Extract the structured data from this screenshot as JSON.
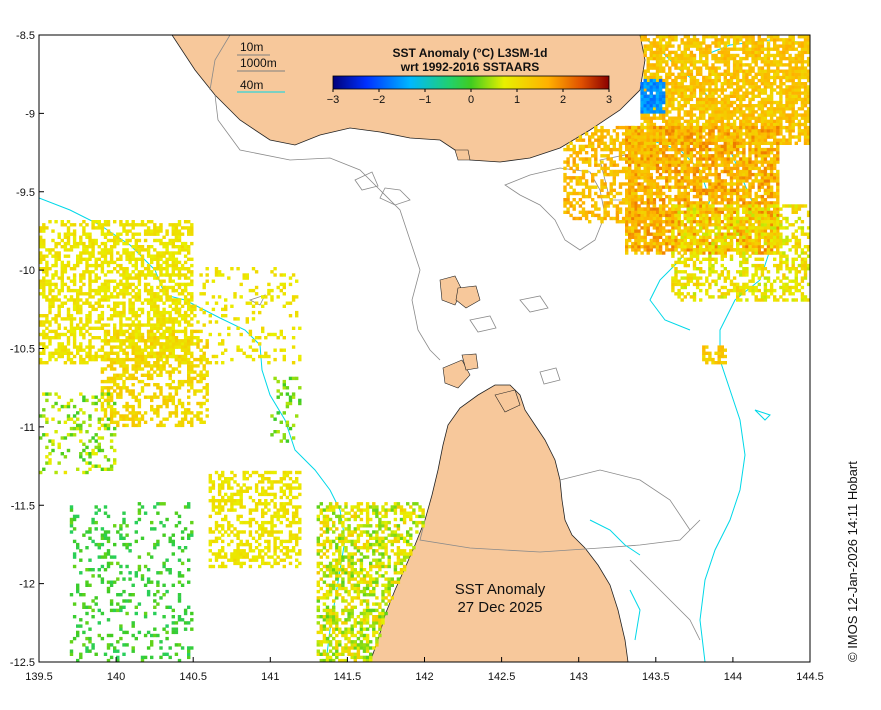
{
  "chart_data": {
    "type": "heatmap",
    "title_line1": "SST Anomaly (°C) L3SM-1d",
    "title_line2": "wrt 1992-2016 SSTAARS",
    "colorbar_ticks": [
      "−3",
      "−2",
      "−1",
      "0",
      "1",
      "2",
      "3"
    ],
    "colorbar_range": [
      -3,
      3
    ],
    "xlim": [
      139.5,
      144.5
    ],
    "ylim": [
      -12.5,
      -8.5
    ],
    "x_ticks": [
      "139.5",
      "140",
      "140.5",
      "141",
      "141.5",
      "142",
      "142.5",
      "143",
      "143.5",
      "144",
      "144.5"
    ],
    "y_ticks": [
      "-8.5",
      "-9",
      "-9.5",
      "-10",
      "-10.5",
      "-11",
      "-11.5",
      "-12",
      "-12.5"
    ],
    "contour_legend": [
      {
        "label": "10m",
        "color": "#7f7f7f"
      },
      {
        "label": "1000m",
        "color": "#7f7f7f"
      },
      {
        "label": "40m",
        "color": "#00d8e8"
      }
    ],
    "annotation_line1": "SST Anomaly",
    "annotation_line2": "27 Dec 2025",
    "grid": false,
    "colors": {
      "land": "#f7c89b",
      "isobath_40m": "#00d8e8",
      "isobath_other": "#8a8a8a"
    }
  },
  "stamp": "© IMOS 12-Jan-2026 14:11 Hobart"
}
